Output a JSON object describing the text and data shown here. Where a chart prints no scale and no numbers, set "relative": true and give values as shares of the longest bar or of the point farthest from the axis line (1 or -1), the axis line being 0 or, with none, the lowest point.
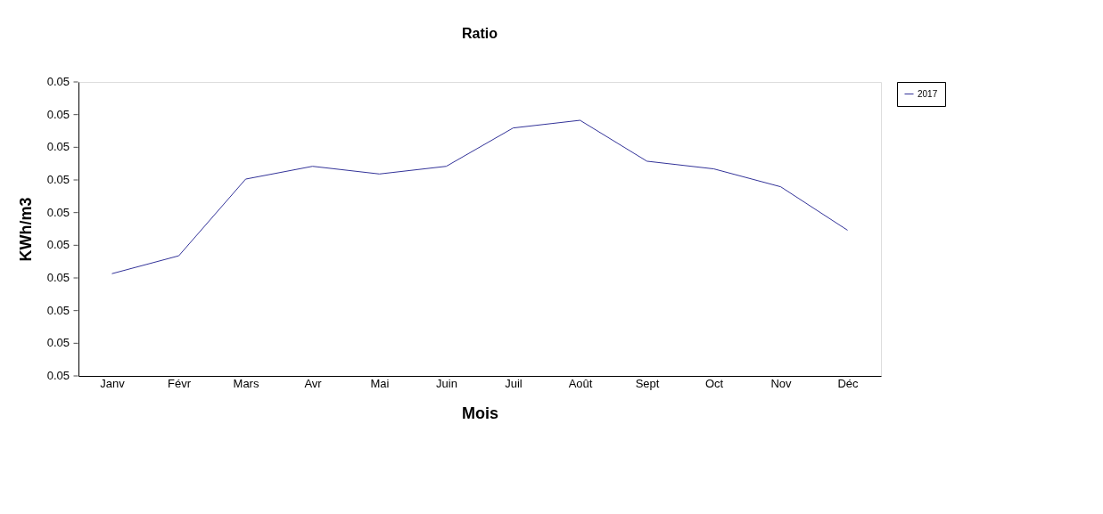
{
  "chart_data": {
    "type": "line",
    "title": "Ratio",
    "xlabel": "Mois",
    "ylabel": "KWh/m3",
    "categories": [
      "Janv",
      "Févr",
      "Mars",
      "Avr",
      "Mai",
      "Juin",
      "Juil",
      "Août",
      "Sept",
      "Oct",
      "Nov",
      "Déc"
    ],
    "series": [
      {
        "name": "2017",
        "color": "#333399",
        "values": [
          0.4,
          0.47,
          0.77,
          0.82,
          0.79,
          0.82,
          0.97,
          1,
          0.84,
          0.81,
          0.74,
          0.57
        ]
      }
    ],
    "relative": true,
    "annotations": [
      "0.05",
      "0.05",
      "0.05",
      "0.05",
      "0.05",
      "0.05",
      "0.05",
      "0.05",
      "0.05",
      "0.05"
    ],
    "grid": false,
    "legend": "right",
    "marker": "none",
    "line_style": "solid"
  }
}
